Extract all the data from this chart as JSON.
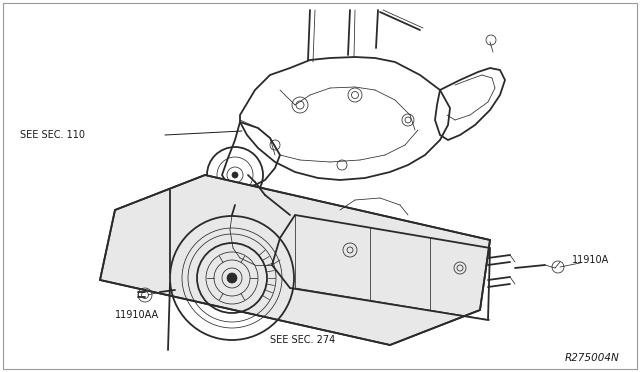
{
  "background_color": "#ffffff",
  "line_color": "#2a2a2a",
  "text_color": "#1a1a1a",
  "diagram_id": "R275004N",
  "labels": {
    "see_sec_110": "SEE SEC. 110",
    "see_sec_274": "SEE SEC. 274",
    "part_11910A": "11910A",
    "part_11910AA": "11910AA"
  },
  "font_size_labels": 7,
  "font_size_id": 7.5,
  "lw_main": 0.9,
  "lw_thin": 0.55,
  "lw_heavy": 1.3
}
